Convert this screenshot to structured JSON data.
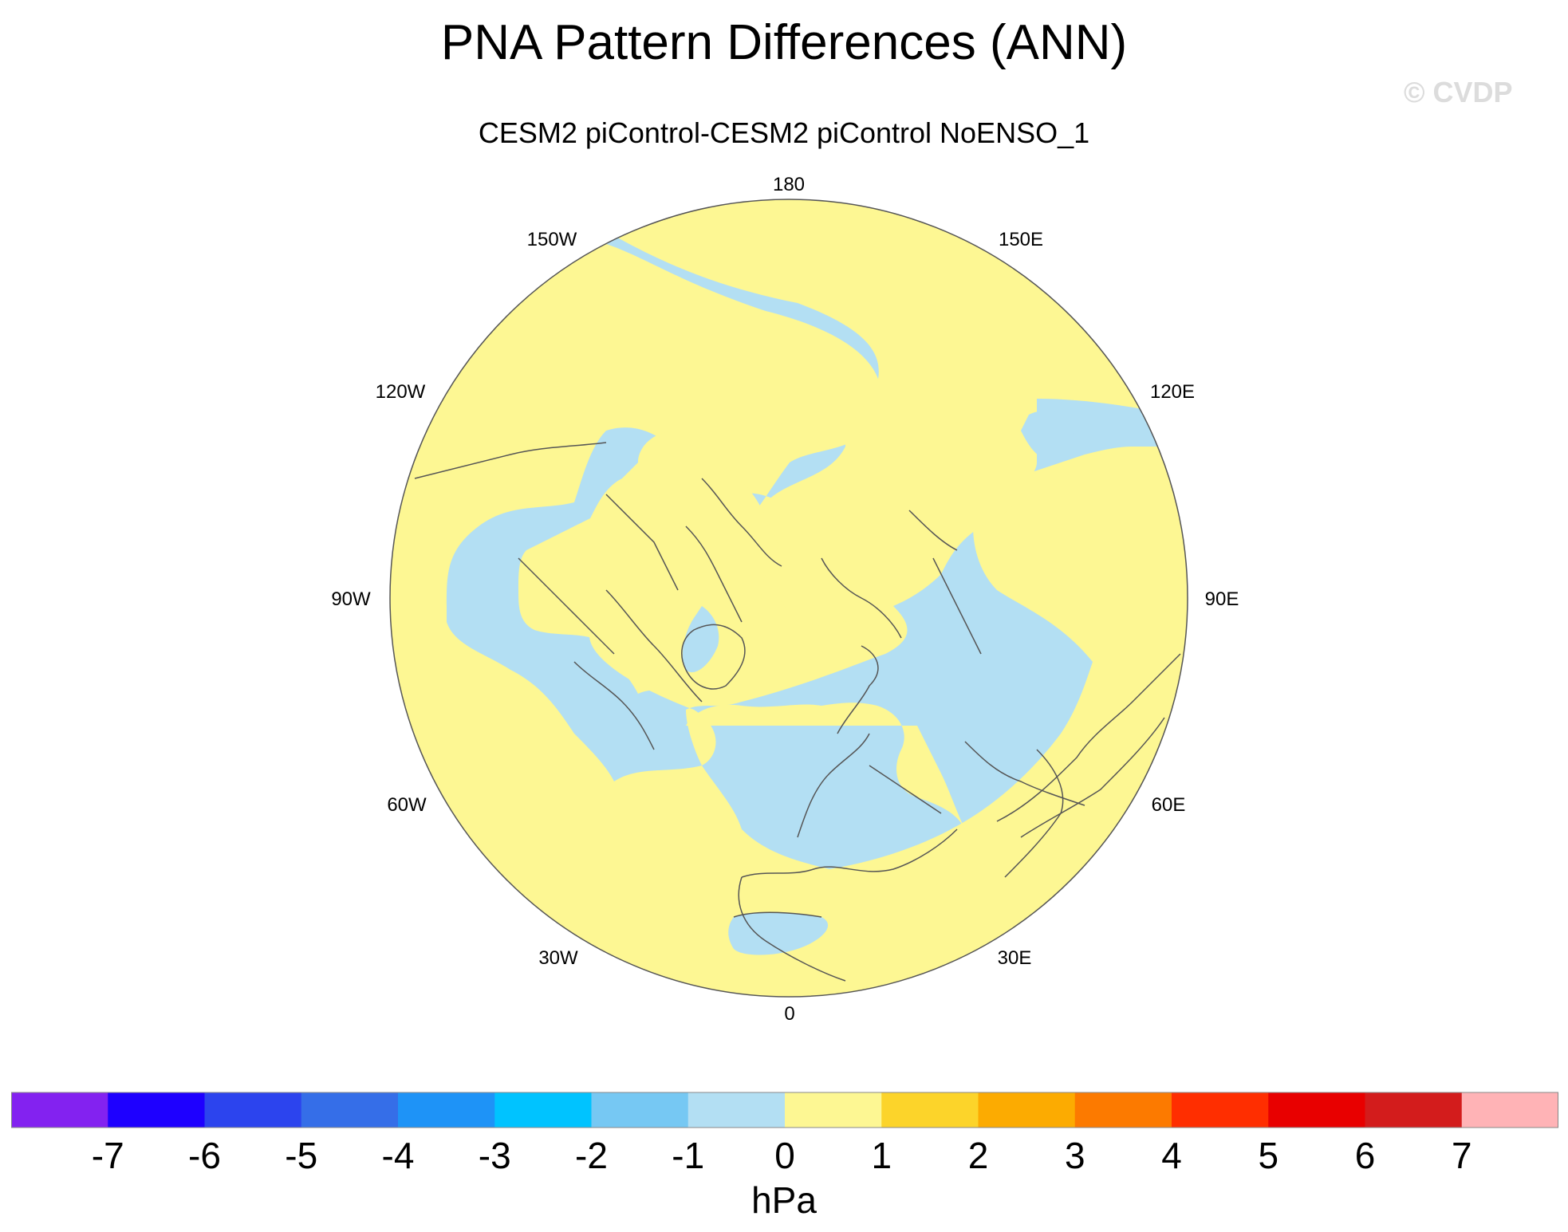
{
  "title": "PNA Pattern Differences (ANN)",
  "subtitle": "CESM2 piControl-CESM2 piControl NoENSO_1",
  "watermark": "© CVDP",
  "longitude_labels": {
    "lon_180": "180",
    "lon_150e": "150E",
    "lon_120e": "120E",
    "lon_90e": "90E",
    "lon_60e": "60E",
    "lon_30e": "30E",
    "lon_0": "0",
    "lon_30w": "30W",
    "lon_60w": "60W",
    "lon_90w": "90W",
    "lon_120w": "120W",
    "lon_150w": "150W"
  },
  "colors": {
    "negative_fill": "#b3dff3",
    "positive_fill": "#fdf793",
    "coastline": "#555555"
  },
  "colorbar": {
    "units": "hPa",
    "colors": [
      "#8322f0",
      "#1e00ff",
      "#2c44ee",
      "#356ee8",
      "#1e93f7",
      "#00c3ff",
      "#76c8f3",
      "#b3dff3",
      "#fdf793",
      "#fcd42a",
      "#fcab01",
      "#fc7a00",
      "#ff2e00",
      "#e80000",
      "#d31c1c",
      "#ffb3b6"
    ],
    "ticks": [
      "-7",
      "-6",
      "-5",
      "-4",
      "-3",
      "-2",
      "-1",
      "0",
      "1",
      "2",
      "3",
      "4",
      "5",
      "6",
      "7"
    ]
  }
}
